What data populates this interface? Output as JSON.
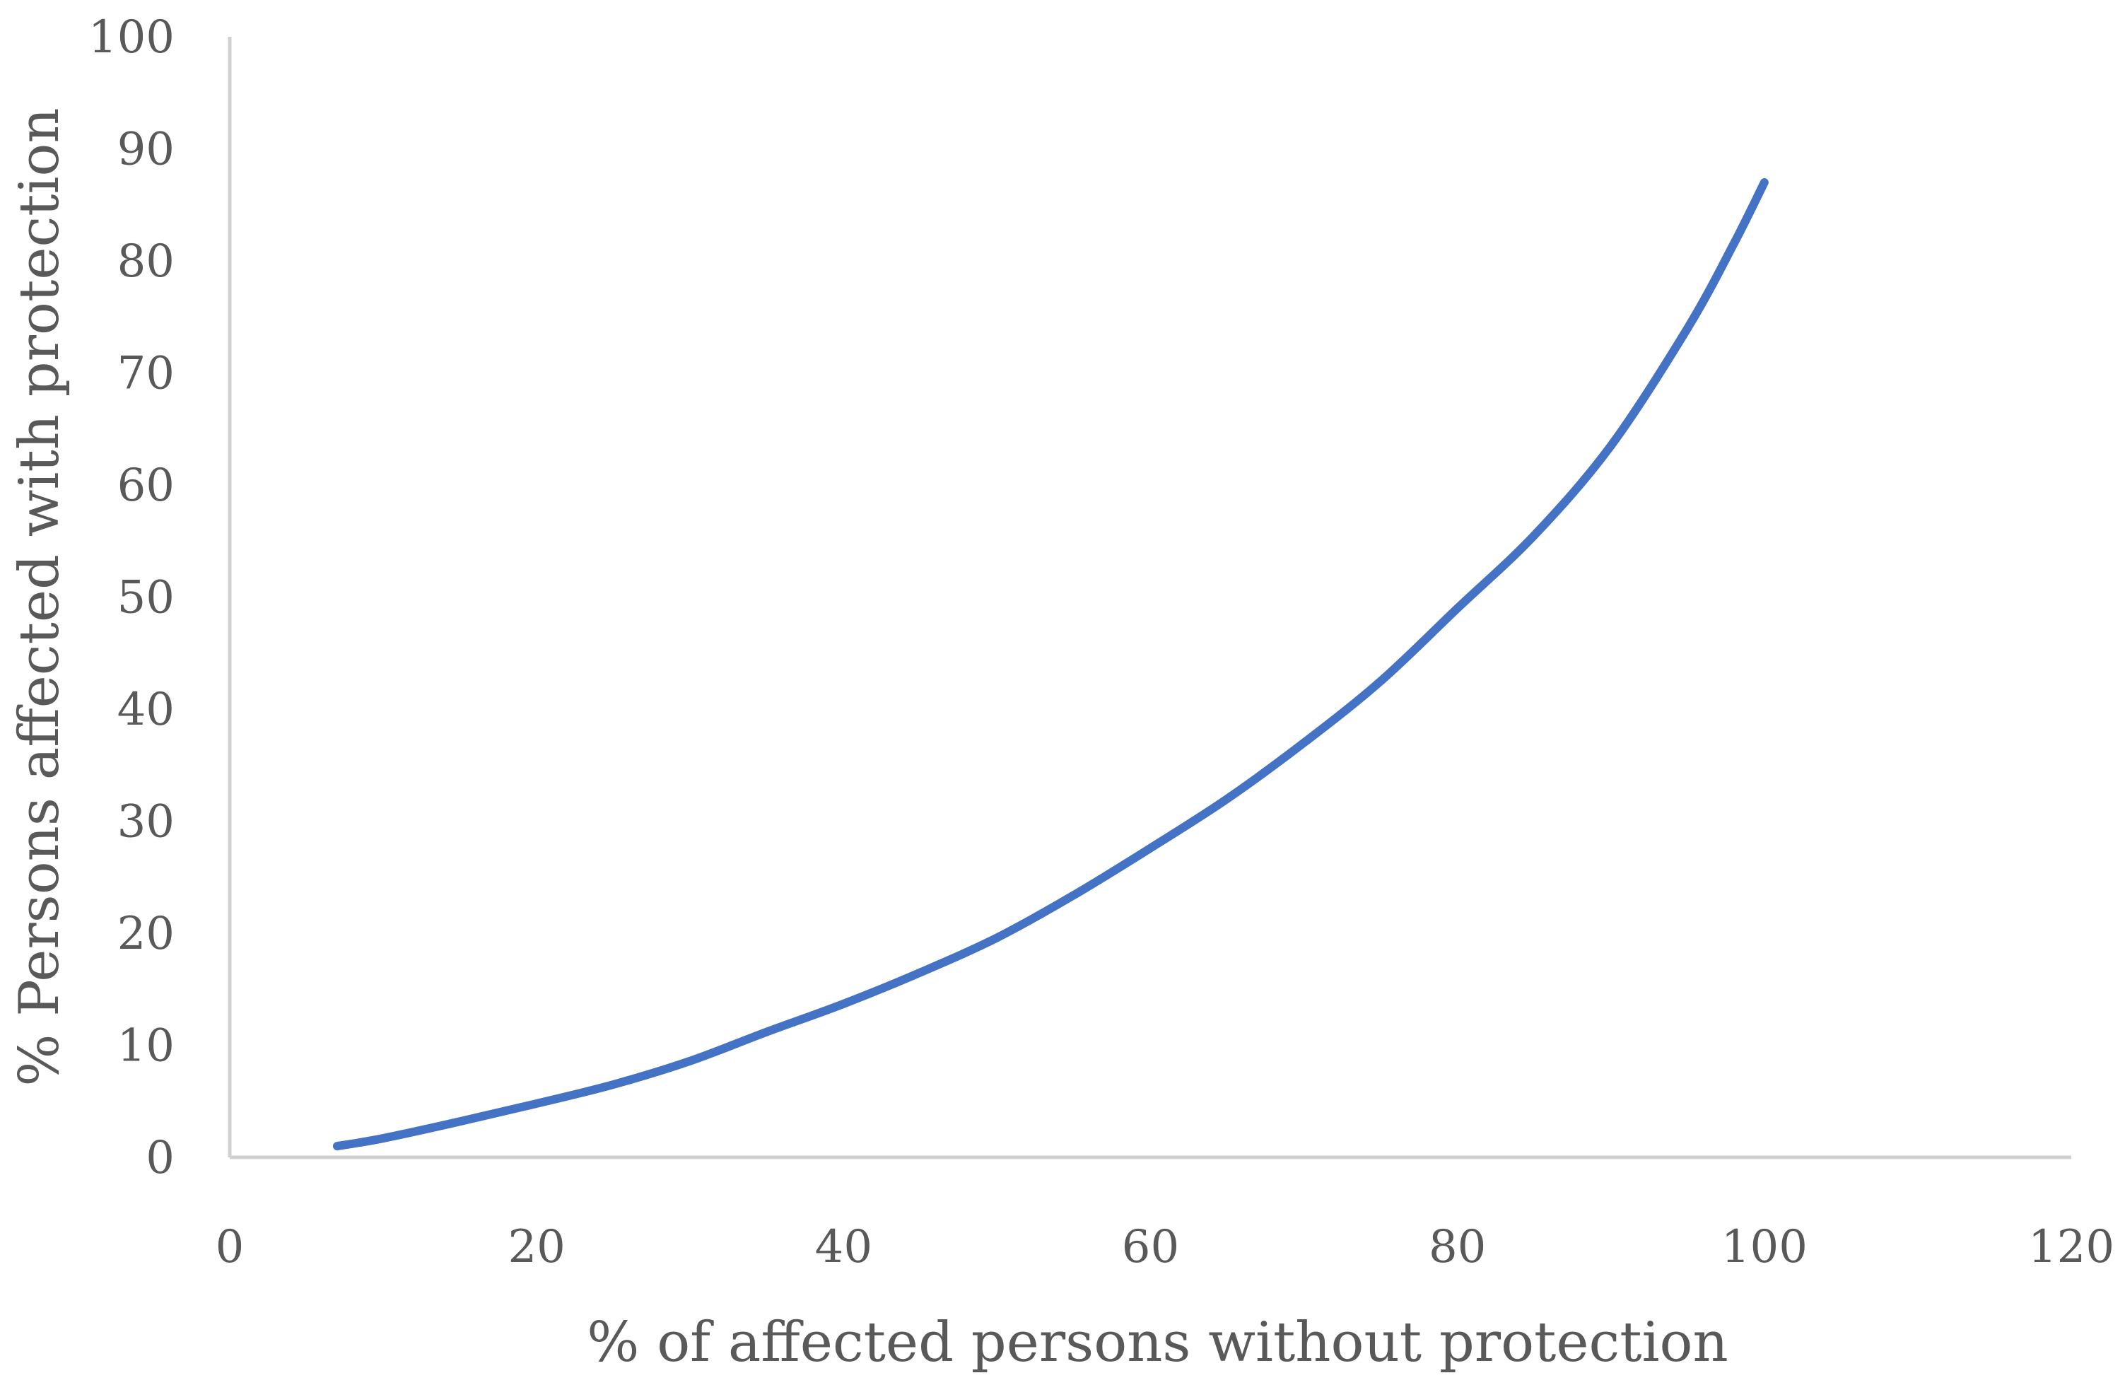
{
  "chart_data": {
    "type": "line",
    "title": "",
    "xlabel": "% of affected persons without protection",
    "ylabel": "% Persons affected with protection",
    "xlim": [
      0,
      120
    ],
    "ylim": [
      0,
      100
    ],
    "x_ticks": [
      0,
      20,
      40,
      60,
      80,
      100,
      120
    ],
    "y_ticks": [
      0,
      10,
      20,
      30,
      40,
      50,
      60,
      70,
      80,
      90,
      100
    ],
    "grid": false,
    "legend": "none",
    "colors": {
      "series": "#4472C4",
      "axis": "#D0D0D0",
      "text": "#595959"
    },
    "series": [
      {
        "x": [
          7,
          10,
          15,
          20,
          25,
          30,
          35,
          40,
          45,
          50,
          55,
          60,
          65,
          70,
          75,
          80,
          85,
          90,
          95,
          98,
          100
        ],
        "y": [
          1,
          1.7,
          3.2,
          4.8,
          6.5,
          8.6,
          11.2,
          13.7,
          16.5,
          19.6,
          23.4,
          27.6,
          32,
          37,
          42.5,
          49,
          55.5,
          63.5,
          74,
          81.5,
          87
        ]
      }
    ]
  }
}
